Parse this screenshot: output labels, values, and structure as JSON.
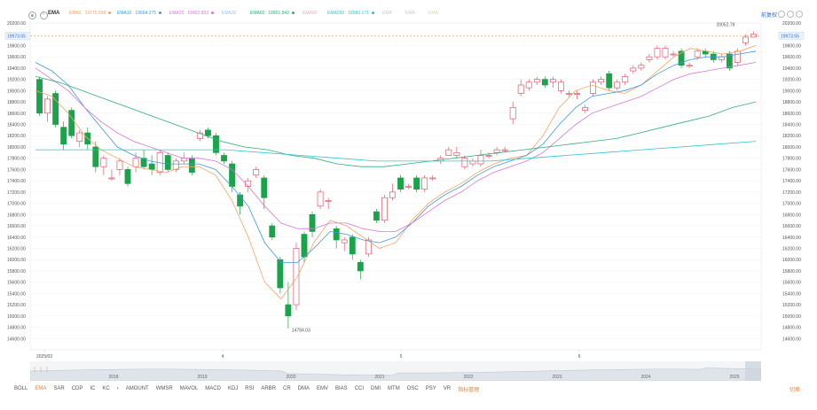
{
  "toolbar": {
    "indicator_label": "EMA",
    "right_link": "前复权"
  },
  "legend": [
    {
      "name": "EMA5",
      "value": "19775.558",
      "color": "#f5a46a",
      "dot": true
    },
    {
      "name": "EMA10",
      "value": "19664.275",
      "color": "#3e9bd8",
      "dot": true
    },
    {
      "name": "EMA20",
      "value": "19452.833",
      "color": "#d978d6",
      "dot": true
    },
    {
      "name": "EMA30",
      "value": "",
      "color": "#9dc3ea",
      "dot": false
    },
    {
      "name": "EMA60",
      "value": "18801.842",
      "color": "#2fae7c",
      "dot": true
    },
    {
      "name": "EMA90",
      "value": "",
      "color": "#f2a9c0",
      "dot": false
    },
    {
      "name": "EMA250",
      "value": "18083.171",
      "color": "#2ec6cf",
      "dot": true
    },
    {
      "name": "EMA",
      "value": "",
      "color": "#c4c8cc",
      "dot": false
    },
    {
      "name": "EMA",
      "value": "",
      "color": "#c4c8cc",
      "dot": false
    },
    {
      "name": "EMA",
      "value": "",
      "color": "#e7d39a",
      "dot": false
    }
  ],
  "chart_data": {
    "type": "candlestick",
    "ylim": [
      14400,
      20200
    ],
    "yticks": [
      "20200.00",
      "20000.00",
      "19800.00",
      "19600.00",
      "19400.00",
      "19200.00",
      "19000.00",
      "18800.00",
      "18600.00",
      "18400.00",
      "18200.00",
      "18000.00",
      "17800.00",
      "17600.00",
      "17400.00",
      "17200.00",
      "17000.00",
      "16800.00",
      "16600.00",
      "16400.00",
      "16200.00",
      "16000.00",
      "15800.00",
      "15600.00",
      "15400.00",
      "15200.00",
      "15000.00",
      "14800.00",
      "14600.00"
    ],
    "current_price": "19973.55",
    "current_price_value": 19973.55,
    "max_label": "20052.78",
    "max_value": 20052.78,
    "min_label": "14784.03",
    "min_value": 14784.03,
    "month_labels": [
      {
        "label": "2025/03",
        "index": 1
      },
      {
        "label": "4",
        "index": 21
      },
      {
        "label": "5",
        "index": 41
      },
      {
        "label": "6",
        "index": 61
      }
    ],
    "candles": [
      [
        19200,
        18600,
        19250,
        18550
      ],
      [
        18600,
        18850,
        18900,
        18450
      ],
      [
        18950,
        18400,
        19000,
        18350
      ],
      [
        18350,
        18050,
        18450,
        17950
      ],
      [
        18650,
        18200,
        18700,
        18150
      ],
      [
        18100,
        18250,
        18300,
        18000
      ],
      [
        18250,
        18050,
        18350,
        17950
      ],
      [
        18000,
        17650,
        18100,
        17550
      ],
      [
        17650,
        17800,
        17850,
        17500
      ],
      [
        17450,
        17450,
        17600,
        17400
      ],
      [
        17600,
        17750,
        17800,
        17500
      ],
      [
        17600,
        17350,
        17650,
        17300
      ],
      [
        17650,
        17800,
        17900,
        17550
      ],
      [
        17800,
        17650,
        17950,
        17600
      ],
      [
        17700,
        17600,
        17850,
        17500
      ],
      [
        17550,
        17900,
        17950,
        17500
      ],
      [
        17850,
        17600,
        17900,
        17550
      ],
      [
        17600,
        17750,
        17800,
        17550
      ],
      [
        17750,
        17800,
        17900,
        17700
      ],
      [
        17800,
        17550,
        17850,
        17500
      ],
      [
        18150,
        18250,
        18300,
        18100
      ],
      [
        18300,
        18200,
        18350,
        18150
      ],
      [
        18200,
        17900,
        18250,
        17850
      ],
      [
        17850,
        17750,
        17900,
        17700
      ],
      [
        17700,
        17300,
        17750,
        17200
      ],
      [
        17150,
        16950,
        17200,
        16800
      ],
      [
        17300,
        17400,
        17450,
        17200
      ],
      [
        17500,
        17600,
        17650,
        17450
      ],
      [
        17450,
        17100,
        17500,
        16900
      ],
      [
        16600,
        16400,
        16650,
        16350
      ],
      [
        16000,
        15500,
        16050,
        15400
      ],
      [
        15200,
        15000,
        15600,
        14784
      ],
      [
        15200,
        16200,
        16300,
        15100
      ],
      [
        16450,
        16050,
        16500,
        15950
      ],
      [
        16800,
        16500,
        16850,
        16400
      ],
      [
        16950,
        17200,
        17250,
        16900
      ],
      [
        17050,
        17050,
        17100,
        16900
      ],
      [
        16550,
        16350,
        16600,
        16200
      ],
      [
        16300,
        16350,
        16400,
        16150
      ],
      [
        16400,
        16100,
        16450,
        16000
      ],
      [
        15950,
        15800,
        16000,
        15650
      ],
      [
        16100,
        16350,
        16400,
        16050
      ],
      [
        16850,
        16700,
        16900,
        16650
      ],
      [
        16700,
        17100,
        17150,
        16650
      ],
      [
        17100,
        17200,
        17350,
        17050
      ],
      [
        17450,
        17250,
        17500,
        17200
      ],
      [
        17300,
        17300,
        17350,
        17250
      ],
      [
        17450,
        17250,
        17500,
        17200
      ],
      [
        17250,
        17450,
        17500,
        17200
      ],
      [
        17450,
        17450,
        17500,
        17400
      ],
      [
        17750,
        17800,
        17850,
        17700
      ],
      [
        17850,
        17950,
        18000,
        17850
      ],
      [
        17850,
        17900,
        18000,
        17800
      ],
      [
        17650,
        17800,
        17850,
        17600
      ],
      [
        17700,
        17750,
        17800,
        17650
      ],
      [
        17700,
        17850,
        17950,
        17650
      ],
      [
        17850,
        17850,
        17900,
        17800
      ],
      [
        17900,
        17950,
        18000,
        17850
      ],
      [
        17950,
        17950,
        18000,
        17900
      ],
      [
        18500,
        18700,
        18800,
        18400
      ],
      [
        18950,
        19100,
        19200,
        18900
      ],
      [
        19050,
        19150,
        19200,
        19000
      ],
      [
        19150,
        19200,
        19250,
        19100
      ],
      [
        19200,
        19100,
        19250,
        19050
      ],
      [
        19150,
        19200,
        19250,
        19050
      ],
      [
        19000,
        19150,
        19200,
        18950
      ],
      [
        18950,
        18950,
        19000,
        18900
      ],
      [
        18950,
        18950,
        19000,
        18850
      ],
      [
        18650,
        18700,
        18750,
        18600
      ],
      [
        18950,
        19150,
        19200,
        18900
      ],
      [
        19150,
        19200,
        19250,
        19100
      ],
      [
        19300,
        19050,
        19350,
        19000
      ],
      [
        19050,
        19150,
        19200,
        19000
      ],
      [
        19150,
        19250,
        19300,
        19100
      ],
      [
        19350,
        19400,
        19450,
        19300
      ],
      [
        19400,
        19450,
        19500,
        19350
      ],
      [
        19550,
        19600,
        19650,
        19500
      ],
      [
        19600,
        19750,
        19800,
        19550
      ],
      [
        19600,
        19750,
        19800,
        19550
      ],
      [
        19650,
        19650,
        19700,
        19600
      ],
      [
        19700,
        19450,
        19750,
        19400
      ],
      [
        19450,
        19450,
        19500,
        19400
      ],
      [
        19600,
        19700,
        19750,
        19550
      ],
      [
        19700,
        19650,
        19750,
        19600
      ],
      [
        19650,
        19550,
        19700,
        19500
      ],
      [
        19550,
        19600,
        19650,
        19500
      ],
      [
        19650,
        19400,
        19700,
        19350
      ],
      [
        19500,
        19700,
        19750,
        19450
      ],
      [
        19850,
        19950,
        20000,
        19800
      ],
      [
        19950,
        20000,
        20052,
        19950
      ]
    ],
    "ema_lines": [
      {
        "name": "EMA5",
        "color": "#f5a46a",
        "values": [
          19000,
          18900,
          18600,
          18200,
          17950,
          17800,
          17650,
          17600,
          17550,
          17650,
          17650,
          17500,
          17050,
          16400,
          15600,
          15300,
          15700,
          16300,
          16700,
          16600,
          16400,
          16200,
          16300,
          16700,
          17000,
          17200,
          17350,
          17550,
          17700,
          17800,
          17850,
          18200,
          18700,
          19000,
          19100,
          19000,
          18950,
          19100,
          19350,
          19600,
          19750,
          19700,
          19650,
          19700,
          19800
        ]
      },
      {
        "name": "EMA10",
        "color": "#3e9bd8",
        "values": [
          19500,
          19350,
          19100,
          18700,
          18350,
          18000,
          17850,
          17750,
          17700,
          17700,
          17700,
          17600,
          17300,
          16950,
          16300,
          15950,
          15950,
          16200,
          16500,
          16450,
          16350,
          16300,
          16400,
          16650,
          16950,
          17150,
          17300,
          17500,
          17650,
          17750,
          17850,
          18050,
          18400,
          18700,
          18900,
          18950,
          19000,
          19100,
          19300,
          19450,
          19550,
          19600,
          19600,
          19650,
          19700
        ]
      },
      {
        "name": "EMA20",
        "color": "#d978d6",
        "values": [
          19400,
          19200,
          19000,
          18700,
          18450,
          18250,
          18100,
          18000,
          17900,
          17800,
          17800,
          17750,
          17600,
          17300,
          16950,
          16650,
          16550,
          16550,
          16650,
          16650,
          16550,
          16500,
          16500,
          16650,
          16850,
          17050,
          17200,
          17400,
          17550,
          17650,
          17750,
          17900,
          18150,
          18400,
          18600,
          18700,
          18800,
          18900,
          19050,
          19200,
          19300,
          19350,
          19400,
          19450,
          19500
        ]
      },
      {
        "name": "EMA60",
        "color": "#2fae7c",
        "values": [
          19250,
          19150,
          19000,
          18850,
          18700,
          18550,
          18400,
          18250,
          18100,
          18000,
          17950,
          17850,
          17800,
          17700,
          17650,
          17650,
          17700,
          17750,
          17800,
          17850,
          17900,
          17950,
          18000,
          18050,
          18100,
          18150,
          18250,
          18350,
          18450,
          18550,
          18700,
          18800
        ]
      },
      {
        "name": "EMA250",
        "color": "#2ec6cf",
        "values": [
          17950,
          17950,
          17950,
          17950,
          17950,
          17950,
          17900,
          17850,
          17800,
          17750,
          17750,
          17750,
          17750,
          17800,
          17850,
          17900,
          17950,
          18000,
          18050,
          18100
        ]
      }
    ]
  },
  "navigator": {
    "years": [
      "2018",
      "2019",
      "2020",
      "2021",
      "2022",
      "2023",
      "2024",
      "2025"
    ],
    "handle": "⋮⋮⋮"
  },
  "tabs": [
    "BOLL",
    "EMA",
    "SAR",
    "CDP",
    "IC",
    "KC",
    "›",
    "AMOUNT",
    "WMSR",
    "MAVOL",
    "MACD",
    "KDJ",
    "RSI",
    "ARBR",
    "CR",
    "DMA",
    "EMV",
    "BIAS",
    "CCI",
    "DMI",
    "MTM",
    "OSC",
    "PSY",
    "VR",
    "指标管理"
  ],
  "tab_right": "切换"
}
